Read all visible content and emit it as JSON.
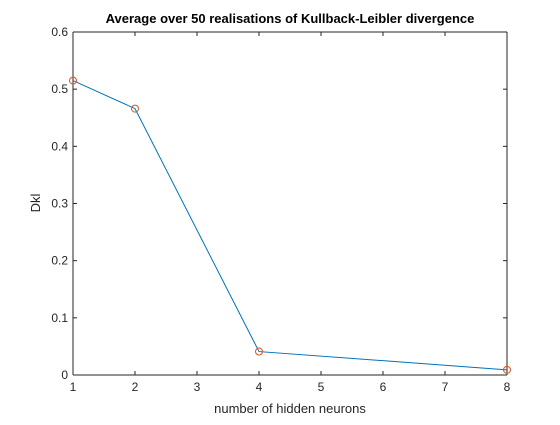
{
  "chart_data": {
    "type": "line",
    "title": "Average over 50 realisations of Kullback-Leibler divergence",
    "xlabel": "number of hidden neurons",
    "ylabel": "Dkl",
    "xlim": [
      1,
      8
    ],
    "ylim": [
      0,
      0.6
    ],
    "xticks": [
      1,
      2,
      3,
      4,
      5,
      6,
      7,
      8
    ],
    "yticks": [
      0,
      0.1,
      0.2,
      0.3,
      0.4,
      0.5,
      0.6
    ],
    "xtick_labels": [
      "1",
      "2",
      "3",
      "4",
      "5",
      "6",
      "7",
      "8"
    ],
    "ytick_labels": [
      "0",
      "0.1",
      "0.2",
      "0.3",
      "0.4",
      "0.5",
      "0.6"
    ],
    "grid": false,
    "legend": "none",
    "series": [
      {
        "x": [
          1,
          2,
          4,
          8
        ],
        "y": [
          0.515,
          0.466,
          0.041,
          0.009
        ],
        "line_color": "#0072BD",
        "marker": "circle",
        "marker_color": "#D95319"
      }
    ]
  }
}
